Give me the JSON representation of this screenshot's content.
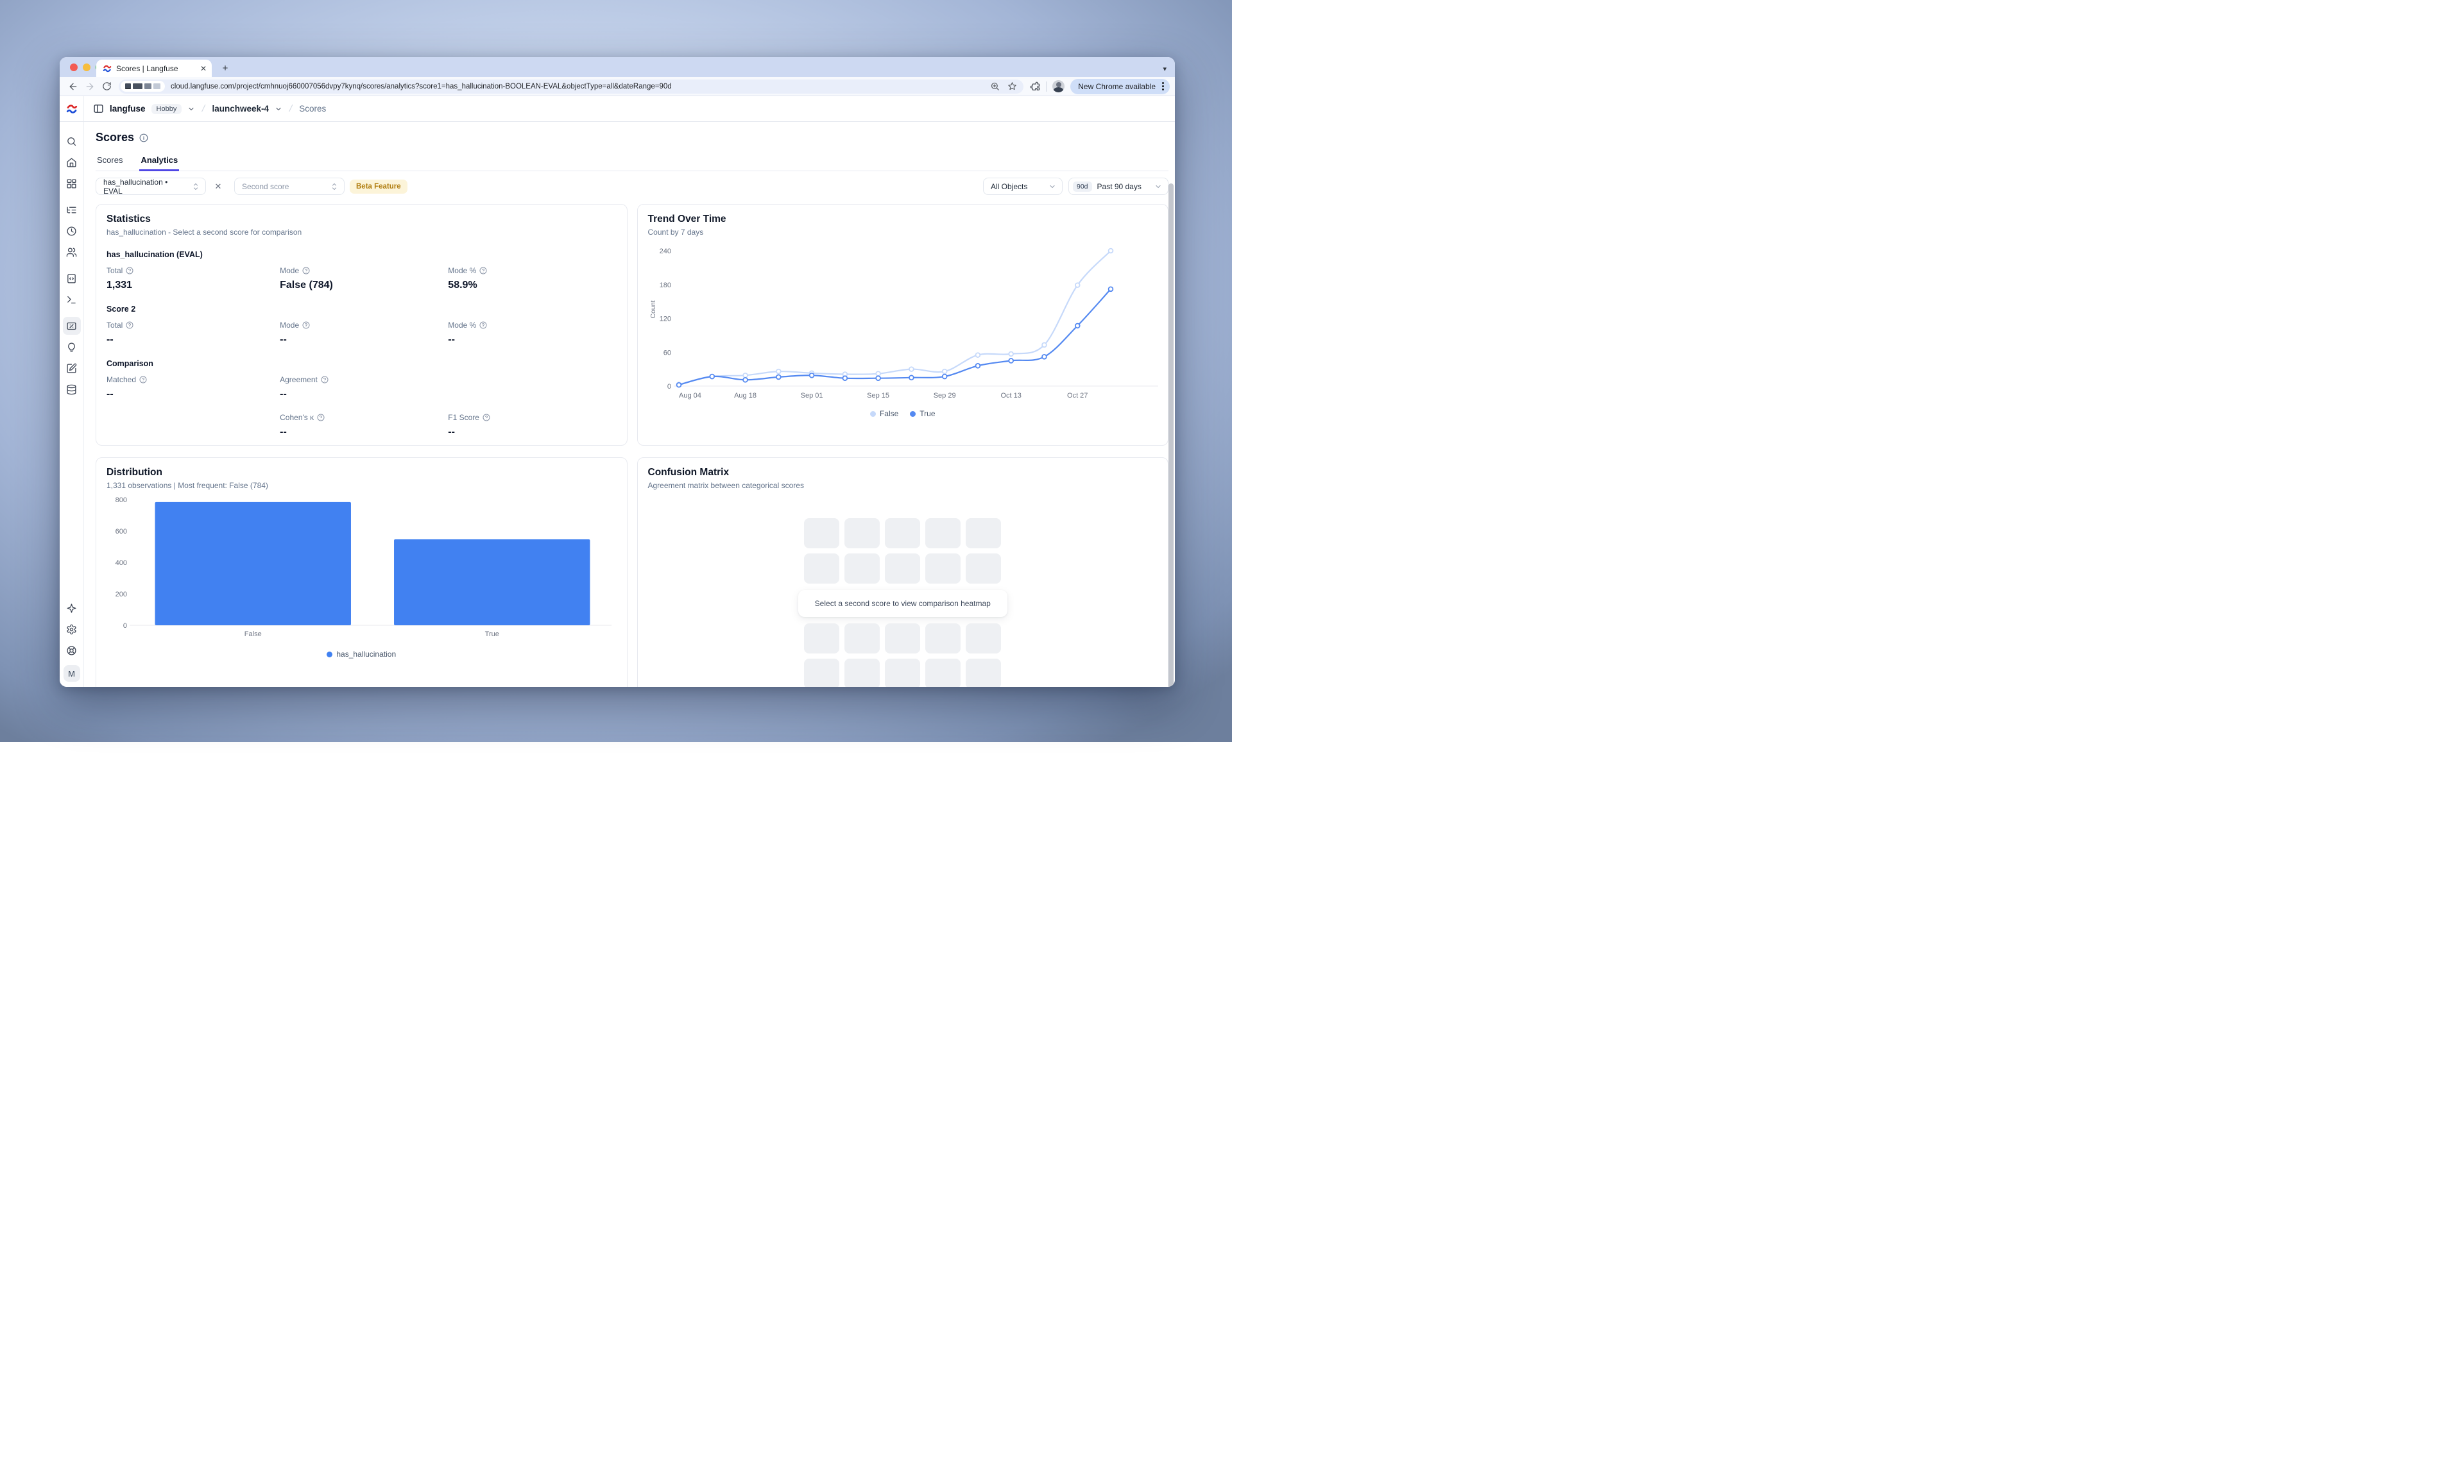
{
  "browser": {
    "tab_title": "Scores | Langfuse",
    "url": "cloud.langfuse.com/project/cmhnuoj660007056dvpy7kynq/scores/analytics?score1=has_hallucination-BOOLEAN-EVAL&objectType=all&dateRange=90d",
    "update_pill": "New Chrome available"
  },
  "app_header": {
    "brand": "langfuse",
    "plan_badge": "Hobby",
    "project": "launchweek-4",
    "current_page": "Scores"
  },
  "page": {
    "title": "Scores",
    "tabs": [
      {
        "label": "Scores",
        "active": false
      },
      {
        "label": "Analytics",
        "active": true
      }
    ]
  },
  "filters": {
    "score1_value": "has_hallucination • EVAL",
    "second_score_placeholder": "Second score",
    "beta_badge": "Beta Feature",
    "object_filter": "All Objects",
    "date_range_short": "90d",
    "date_range_label": "Past 90 days"
  },
  "sidebar": {
    "top_icons": [
      {
        "name": "search",
        "active": false,
        "group_start": false
      },
      {
        "name": "home",
        "active": false,
        "group_start": false
      },
      {
        "name": "dashboard",
        "active": false,
        "group_start": false
      },
      {
        "name": "tracing",
        "active": false,
        "group_start": true
      },
      {
        "name": "sessions",
        "active": false,
        "group_start": false
      },
      {
        "name": "users",
        "active": false,
        "group_start": false
      },
      {
        "name": "prompts",
        "active": false,
        "group_start": true
      },
      {
        "name": "playground",
        "active": false,
        "group_start": false
      },
      {
        "name": "scores",
        "active": true,
        "group_start": true
      },
      {
        "name": "evaluators",
        "active": false,
        "group_start": false
      },
      {
        "name": "datasets",
        "active": false,
        "group_start": false
      },
      {
        "name": "database",
        "active": false,
        "group_start": false
      }
    ],
    "bottom_icons": [
      {
        "name": "sparkles"
      },
      {
        "name": "settings"
      },
      {
        "name": "support"
      }
    ],
    "avatar_initial": "M"
  },
  "statistics": {
    "title": "Statistics",
    "subtitle": "has_hallucination - Select a second score for comparison",
    "sections": [
      {
        "heading": "has_hallucination (EVAL)",
        "layout": "three-col",
        "metrics": [
          {
            "label": "Total",
            "value": "1,331"
          },
          {
            "label": "Mode",
            "value": "False (784)"
          },
          {
            "label": "Mode %",
            "value": "58.9%"
          }
        ]
      },
      {
        "heading": "Score 2",
        "layout": "three-col",
        "metrics": [
          {
            "label": "Total",
            "value": "--"
          },
          {
            "label": "Mode",
            "value": "--"
          },
          {
            "label": "Mode %",
            "value": "--"
          }
        ]
      },
      {
        "heading": "Comparison",
        "layout": "comparison",
        "metrics": [
          {
            "label": "Matched",
            "value": "--"
          },
          {
            "label": "Agreement",
            "value": "--"
          },
          {
            "label": "Cohen's κ",
            "value": "--"
          },
          {
            "label": "F1 Score",
            "value": "--"
          }
        ]
      }
    ]
  },
  "confusion": {
    "title": "Confusion Matrix",
    "subtitle": "Agreement matrix between categorical scores",
    "empty_message": "Select a second score to view comparison heatmap"
  },
  "chart_data": [
    {
      "id": "trend",
      "type": "line",
      "title": "Trend Over Time",
      "subtitle": "Count by 7 days",
      "ylabel": "Count",
      "ylim": [
        0,
        240
      ],
      "yticks": [
        0,
        60,
        120,
        180,
        240
      ],
      "x_tick_labels": [
        "Aug 04",
        "Aug 18",
        "Sep 01",
        "Sep 15",
        "Sep 29",
        "Oct 13",
        "Oct 27"
      ],
      "x_tick_every": 2,
      "legend_position": "bottom",
      "grid": false,
      "series": [
        {
          "name": "False",
          "color": "#c6d9fa",
          "values": [
            3,
            17,
            19,
            26,
            23,
            21,
            22,
            30,
            26,
            55,
            57,
            73,
            179,
            240
          ]
        },
        {
          "name": "True",
          "color": "#5489f1",
          "values": [
            2,
            17,
            11,
            16,
            19,
            14,
            14,
            15,
            17,
            36,
            45,
            52,
            107,
            172
          ]
        }
      ]
    },
    {
      "id": "distribution",
      "type": "bar",
      "title": "Distribution",
      "subtitle": "1,331 observations | Most frequent: False (784)",
      "categories": [
        "False",
        "True"
      ],
      "values": [
        784,
        547
      ],
      "bar_color": "#4181f1",
      "ylim": [
        0,
        800
      ],
      "yticks": [
        0,
        200,
        400,
        600,
        800
      ],
      "legend": [
        {
          "label": "has_hallucination",
          "color": "#4181f1"
        }
      ],
      "legend_position": "bottom",
      "grid": false
    }
  ],
  "colors": {
    "accent": "#4f46e5",
    "line_true": "#5489f1",
    "line_false": "#c6d9fa",
    "bar_blue": "#4181f1"
  }
}
